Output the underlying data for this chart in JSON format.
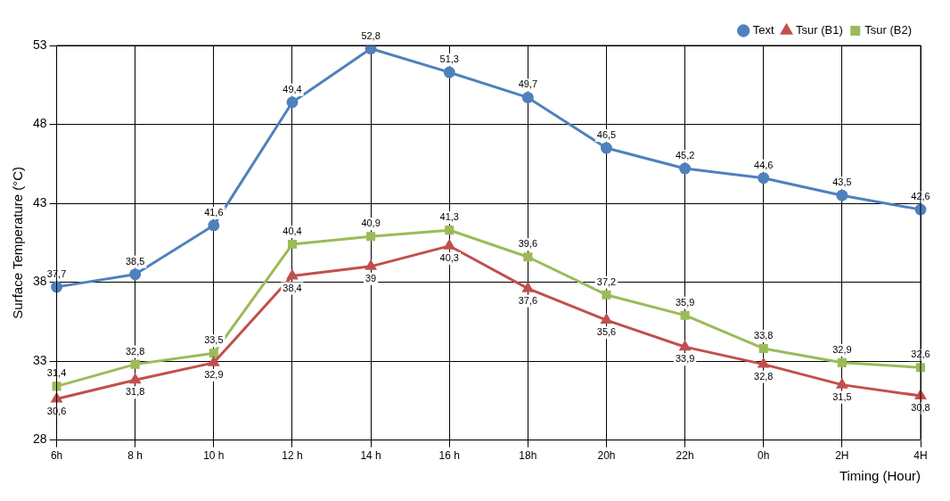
{
  "chart_data": {
    "type": "line",
    "ylabel": "Surface Temperature (°C)",
    "xlabel": "Timing (Hour)",
    "categories": [
      "6h",
      "8 h",
      "10 h",
      "12 h",
      "14 h",
      "16 h",
      "18h",
      "20h",
      "22h",
      "0h",
      "2H",
      "4H"
    ],
    "ylim": [
      28,
      53
    ],
    "yticks": [
      28,
      33,
      38,
      43,
      48,
      53
    ],
    "grid": true,
    "legend": "top right",
    "series": [
      {
        "name": "Text",
        "color": "#4f81bd",
        "marker": "circle",
        "values": [
          37.7,
          38.5,
          41.6,
          49.4,
          52.8,
          51.3,
          49.7,
          46.5,
          45.2,
          44.6,
          43.5,
          42.6
        ],
        "value_labels": [
          "37,7",
          "38,5",
          "41,6",
          "49,4",
          "52,8",
          "51,3",
          "49,7",
          "46,5",
          "45,2",
          "44,6",
          "43,5",
          "42,6"
        ]
      },
      {
        "name": "Tsur (B1)",
        "color": "#c0504d",
        "marker": "triangle",
        "values": [
          30.6,
          31.8,
          32.9,
          38.4,
          39,
          40.3,
          37.6,
          35.6,
          33.9,
          32.8,
          31.5,
          30.8
        ],
        "value_labels": [
          "30,6",
          "31,8",
          "32,9",
          "38,4",
          "39",
          "40,3",
          "37,6",
          "35,6",
          "33,9",
          "32,8",
          "31,5",
          "30,8"
        ]
      },
      {
        "name": "Tsur (B2)",
        "color": "#9bbb59",
        "marker": "square",
        "values": [
          31.4,
          32.8,
          33.5,
          40.4,
          40.9,
          41.3,
          39.6,
          37.2,
          35.9,
          33.8,
          32.9,
          32.6
        ],
        "value_labels": [
          "31,4",
          "32,8",
          "33,5",
          "40,4",
          "40,9",
          "41,3",
          "39,6",
          "37,2",
          "35,9",
          "33,8",
          "32,9",
          "32,6"
        ]
      }
    ]
  }
}
